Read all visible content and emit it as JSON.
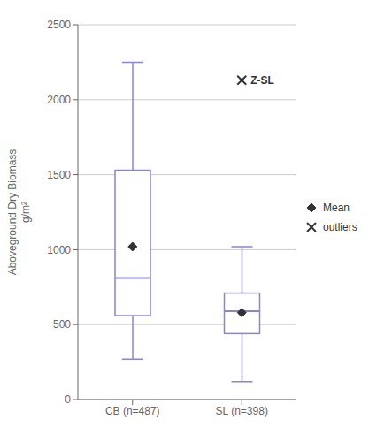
{
  "chart_data": {
    "type": "box",
    "categories": [
      "CB (n=487)",
      "SL (n=398)"
    ],
    "boxes": [
      {
        "min": 270,
        "q1": 560,
        "median": 810,
        "q3": 1530,
        "max": 2250
      },
      {
        "min": 120,
        "q1": 440,
        "median": 590,
        "q3": 710,
        "max": 1020
      }
    ],
    "series": [
      {
        "name": "Mean",
        "marker": "diamond",
        "values": [
          1020,
          580
        ]
      },
      {
        "name": "outliers",
        "marker": "x",
        "values": [
          null,
          2130
        ]
      }
    ],
    "annotations": [
      {
        "text": "Z-SL",
        "category": "SL (n=398)",
        "y": 2130
      }
    ],
    "ylabel": "Aboveground Dry Biomass\ng/m²",
    "ylim": [
      0,
      2500
    ],
    "yticks": [
      0,
      500,
      1000,
      1500,
      2000,
      2500
    ],
    "grid": true,
    "legend": "right"
  }
}
